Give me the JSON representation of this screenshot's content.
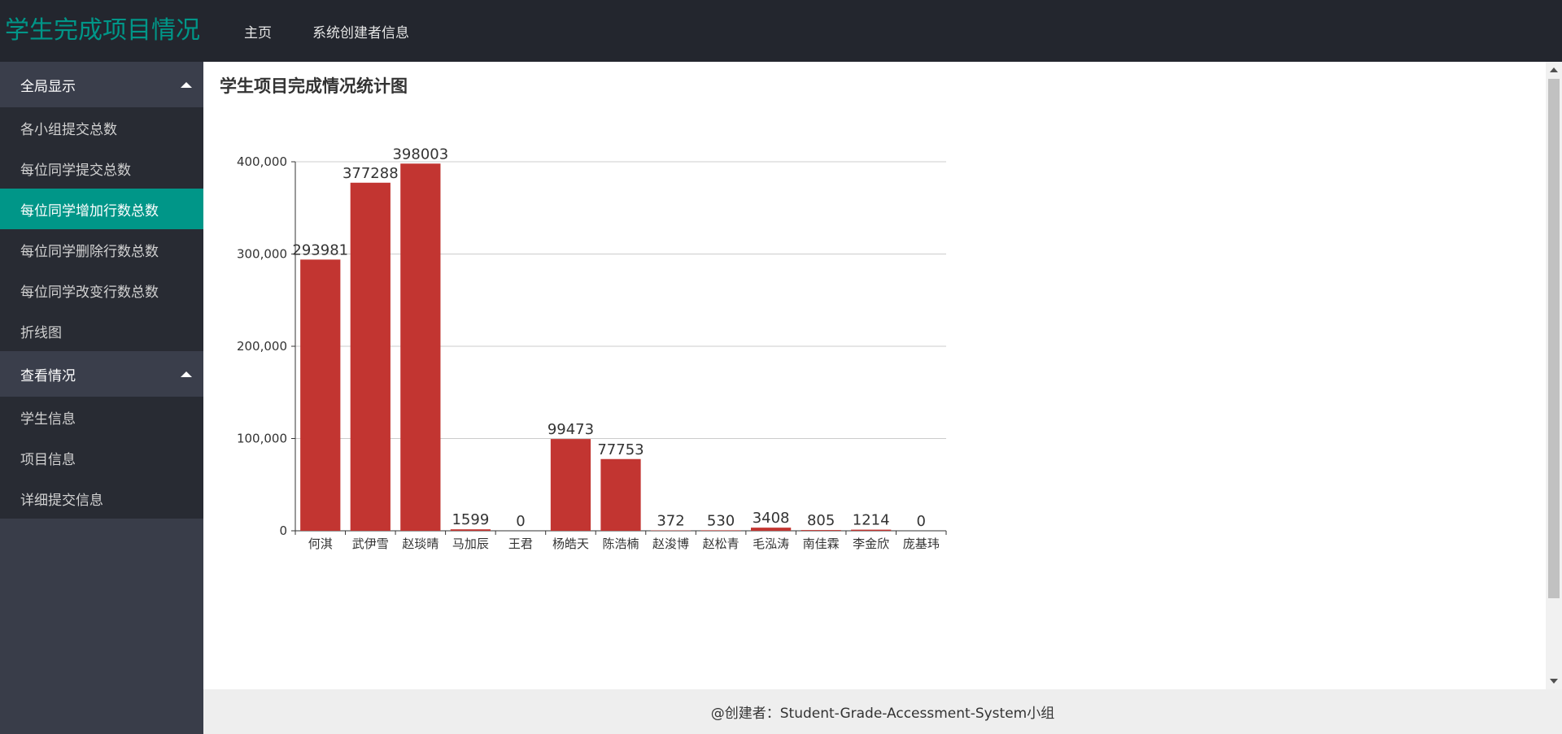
{
  "header": {
    "brand": "学生完成项目情况",
    "nav": [
      "主页",
      "系统创建者信息"
    ]
  },
  "sidebar": {
    "groups": [
      {
        "title": "全局显示",
        "items": [
          "各小组提交总数",
          "每位同学提交总数",
          "每位同学增加行数总数",
          "每位同学删除行数总数",
          "每位同学改变行数总数",
          "折线图"
        ],
        "active": 2
      },
      {
        "title": "查看情况",
        "items": [
          "学生信息",
          "项目信息",
          "详细提交信息"
        ]
      }
    ]
  },
  "main": {
    "title": "学生项目完成情况统计图"
  },
  "footer": {
    "text": "@创建者：Student-Grade-Accessment-System小组"
  },
  "colors": {
    "accent": "#009688",
    "bar": "#c23531",
    "topbar": "#23262e",
    "sidebar": "#393d49"
  },
  "chart_data": {
    "type": "bar",
    "categories": [
      "何淇",
      "武伊雪",
      "赵琰晴",
      "马加辰",
      "王君",
      "杨皓天",
      "陈浩楠",
      "赵浚博",
      "赵松青",
      "毛泓涛",
      "南佳霖",
      "李金欣",
      "庞基玮"
    ],
    "values": [
      293981,
      377288,
      398003,
      1599,
      0,
      99473,
      77753,
      372,
      530,
      3408,
      805,
      1214,
      0
    ],
    "ylim": [
      0,
      400000
    ],
    "yticks": [
      0,
      100000,
      200000,
      300000,
      400000
    ],
    "ytick_labels": [
      "0",
      "100,000",
      "200,000",
      "300,000",
      "400,000"
    ],
    "data_labels": [
      "293981",
      "377288",
      "398003",
      "1599",
      "0",
      "99473",
      "77753",
      "372",
      "530",
      "3408",
      "805",
      "1214",
      "0"
    ],
    "grid": true,
    "title": "",
    "xlabel": "",
    "ylabel": ""
  }
}
